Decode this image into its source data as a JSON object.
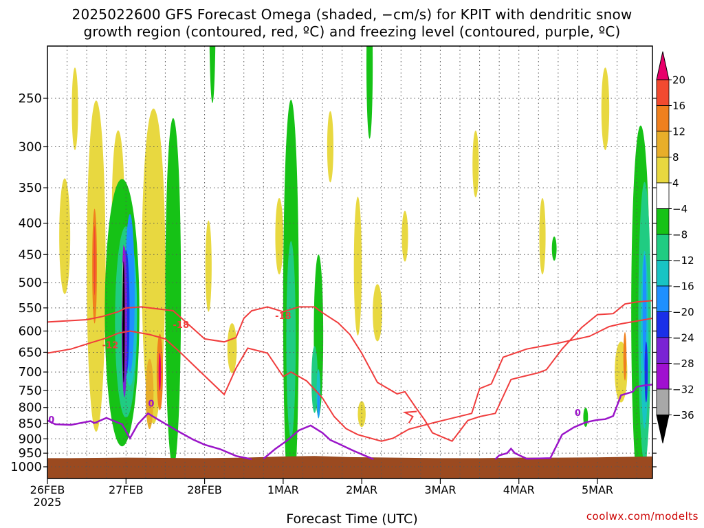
{
  "chart_data": {
    "type": "heatmap",
    "title_line1": "2025022600 GFS Forecast Omega (shaded, −cm/s) for KPIT with dendritic snow",
    "title_line2": "growth region (contoured, red, ºC) and freezing level (contoured, purple, ºC)",
    "xlabel": "Forecast Time (UTC)",
    "credit": "coolwx.com/modelts",
    "x_ticks": [
      {
        "day": 0,
        "label": "26FEB",
        "sub": "2025"
      },
      {
        "day": 1,
        "label": "27FEB",
        "sub": ""
      },
      {
        "day": 2,
        "label": "28FEB",
        "sub": ""
      },
      {
        "day": 3,
        "label": "1MAR",
        "sub": ""
      },
      {
        "day": 4,
        "label": "2MAR",
        "sub": ""
      },
      {
        "day": 5,
        "label": "3MAR",
        "sub": ""
      },
      {
        "day": 6,
        "label": "4MAR",
        "sub": ""
      },
      {
        "day": 7,
        "label": "5MAR",
        "sub": ""
      }
    ],
    "xlim_days": [
      0,
      7.7
    ],
    "y_ticks": [
      250,
      300,
      350,
      400,
      450,
      500,
      550,
      600,
      650,
      700,
      750,
      800,
      850,
      900,
      950,
      1000
    ],
    "ylim_hpa": [
      200,
      1050
    ],
    "colorbar": {
      "labels": [
        "20",
        "16",
        "12",
        "8",
        "4",
        "−4",
        "−8",
        "−12",
        "−16",
        "−20",
        "−24",
        "−28",
        "−32",
        "−36"
      ],
      "colors": [
        "#e8006a",
        "#f24a30",
        "#f0801e",
        "#e8ae2a",
        "#e8d840",
        "#ffffff",
        "#16c216",
        "#20cc82",
        "#18c4c4",
        "#1e90ff",
        "#1a30e8",
        "#7a24d4",
        "#a010d0",
        "#a8a8a8",
        "#000000"
      ]
    },
    "ground_color": "#9b4a20",
    "ground_surface": [
      [
        0,
        968
      ],
      [
        0.3,
        968
      ],
      [
        1,
        966
      ],
      [
        2,
        968
      ],
      [
        2.5,
        966
      ],
      [
        3,
        962
      ],
      [
        3.4,
        960
      ],
      [
        3.8,
        964
      ],
      [
        4.4,
        966
      ],
      [
        5,
        968
      ],
      [
        5.5,
        968
      ],
      [
        6,
        966
      ],
      [
        6.5,
        966
      ],
      [
        7,
        965
      ],
      [
        7.7,
        962
      ]
    ],
    "contours_red": [
      {
        "label": "-18",
        "label_at": [
          1.7,
          588
        ],
        "points": [
          [
            0,
            580
          ],
          [
            0.2,
            578
          ],
          [
            0.5,
            575
          ],
          [
            0.7,
            568
          ],
          [
            0.9,
            558
          ],
          [
            1.0,
            550
          ],
          [
            1.2,
            548
          ],
          [
            1.4,
            552
          ],
          [
            1.6,
            556
          ],
          [
            1.8,
            586
          ],
          [
            2.0,
            618
          ],
          [
            2.25,
            625
          ],
          [
            2.4,
            615
          ],
          [
            2.5,
            572
          ],
          [
            2.6,
            556
          ],
          [
            2.8,
            548
          ],
          [
            3.0,
            558
          ],
          [
            3.2,
            548
          ],
          [
            3.4,
            548
          ],
          [
            3.5,
            560
          ],
          [
            3.7,
            582
          ],
          [
            3.85,
            608
          ],
          [
            4.0,
            652
          ],
          [
            4.2,
            728
          ],
          [
            4.45,
            760
          ],
          [
            4.55,
            754
          ],
          [
            4.7,
            804
          ],
          [
            4.8,
            838
          ],
          [
            4.9,
            880
          ],
          [
            5.15,
            908
          ],
          [
            5.35,
            840
          ],
          [
            5.5,
            828
          ],
          [
            5.7,
            818
          ],
          [
            5.9,
            720
          ],
          [
            6.05,
            712
          ],
          [
            6.25,
            702
          ],
          [
            6.35,
            694
          ],
          [
            6.55,
            642
          ],
          [
            6.8,
            592
          ],
          [
            7.0,
            564
          ],
          [
            7.2,
            562
          ],
          [
            7.35,
            542
          ],
          [
            7.5,
            538
          ],
          [
            7.7,
            535
          ]
        ]
      },
      {
        "label": "-12",
        "label_at": [
          0.8,
          634
        ],
        "points": [
          [
            0,
            652
          ],
          [
            0.3,
            642
          ],
          [
            0.5,
            630
          ],
          [
            0.75,
            616
          ],
          [
            0.9,
            605
          ],
          [
            1.05,
            600
          ],
          [
            1.3,
            608
          ],
          [
            1.5,
            618
          ],
          [
            1.7,
            652
          ],
          [
            1.95,
            700
          ],
          [
            2.25,
            762
          ],
          [
            2.4,
            690
          ],
          [
            2.55,
            640
          ],
          [
            2.8,
            652
          ],
          [
            3.0,
            712
          ],
          [
            3.1,
            700
          ],
          [
            3.3,
            724
          ],
          [
            3.5,
            772
          ],
          [
            3.65,
            828
          ],
          [
            3.8,
            866
          ],
          [
            3.95,
            886
          ],
          [
            4.25,
            908
          ],
          [
            4.4,
            898
          ],
          [
            4.6,
            868
          ],
          [
            4.9,
            848
          ],
          [
            5.1,
            836
          ],
          [
            5.4,
            818
          ],
          [
            5.5,
            745
          ],
          [
            5.65,
            732
          ],
          [
            5.8,
            662
          ],
          [
            6.1,
            642
          ],
          [
            6.5,
            628
          ],
          [
            6.9,
            612
          ],
          [
            7.15,
            590
          ],
          [
            7.3,
            584
          ],
          [
            7.5,
            578
          ],
          [
            7.7,
            572
          ]
        ]
      },
      {
        "label": "-18",
        "label_at": [
          3.0,
          568
        ],
        "points": [
          [
            4.6,
            848
          ],
          [
            4.65,
            828
          ],
          [
            4.55,
            815
          ],
          [
            4.7,
            812
          ]
        ]
      }
    ],
    "contours_purple": [
      {
        "label": "0",
        "label_at": [
          0.05,
          840
        ],
        "points": [
          [
            0,
            840
          ],
          [
            0.1,
            852
          ],
          [
            0.3,
            854
          ],
          [
            0.55,
            842
          ],
          [
            0.6,
            848
          ],
          [
            0.75,
            832
          ],
          [
            0.95,
            852
          ],
          [
            1.05,
            898
          ],
          [
            1.15,
            852
          ],
          [
            1.28,
            818
          ],
          [
            1.4,
            836
          ],
          [
            1.65,
            873
          ],
          [
            1.85,
            902
          ],
          [
            2.0,
            920
          ],
          [
            2.2,
            936
          ],
          [
            2.4,
            960
          ],
          [
            2.6,
            972
          ]
        ]
      },
      {
        "label": "0",
        "label_at": [
          1.32,
          790
        ],
        "points": [
          [
            2.75,
            970
          ],
          [
            2.9,
            935
          ],
          [
            3.05,
            906
          ],
          [
            3.2,
            872
          ],
          [
            3.35,
            856
          ],
          [
            3.5,
            880
          ],
          [
            3.6,
            904
          ],
          [
            3.7,
            916
          ],
          [
            3.9,
            942
          ],
          [
            4.05,
            960
          ],
          [
            4.15,
            972
          ]
        ]
      },
      {
        "label": "0",
        "label_at": [
          6.75,
          818
        ],
        "points": [
          [
            5.7,
            972
          ],
          [
            5.75,
            958
          ],
          [
            5.85,
            950
          ],
          [
            5.9,
            934
          ],
          [
            5.95,
            950
          ],
          [
            6.1,
            970
          ],
          [
            6.4,
            968
          ],
          [
            6.55,
            886
          ],
          [
            6.7,
            862
          ],
          [
            6.85,
            846
          ],
          [
            7.0,
            838
          ],
          [
            7.1,
            836
          ],
          [
            7.2,
            826
          ],
          [
            7.3,
            764
          ],
          [
            7.45,
            754
          ],
          [
            7.5,
            740
          ],
          [
            7.6,
            736
          ],
          [
            7.7,
            734
          ]
        ]
      }
    ],
    "omega_blobs": [
      {
        "value": 6,
        "cx": 0.22,
        "cy": 420,
        "rx": 0.07,
        "ry": 90
      },
      {
        "value": 6,
        "cx": 0.35,
        "cy": 260,
        "rx": 0.04,
        "ry": 40
      },
      {
        "value": 6,
        "cx": 0.62,
        "cy": 470,
        "rx": 0.12,
        "ry": 260
      },
      {
        "value": 6,
        "cx": 1.35,
        "cy": 470,
        "rx": 0.15,
        "ry": 250
      },
      {
        "value": 6,
        "cx": 0.9,
        "cy": 380,
        "rx": 0.08,
        "ry": 110
      },
      {
        "value": 6,
        "cx": 2.05,
        "cy": 470,
        "rx": 0.04,
        "ry": 80
      },
      {
        "value": 6,
        "cx": 2.35,
        "cy": 640,
        "rx": 0.06,
        "ry": 60
      },
      {
        "value": 6,
        "cx": 2.95,
        "cy": 420,
        "rx": 0.05,
        "ry": 60
      },
      {
        "value": 6,
        "cx": 3.95,
        "cy": 470,
        "rx": 0.05,
        "ry": 120
      },
      {
        "value": 6,
        "cx": 4.2,
        "cy": 560,
        "rx": 0.06,
        "ry": 60
      },
      {
        "value": 6,
        "cx": 4.0,
        "cy": 820,
        "rx": 0.05,
        "ry": 40
      },
      {
        "value": 6,
        "cx": 3.6,
        "cy": 300,
        "rx": 0.04,
        "ry": 40
      },
      {
        "value": 6,
        "cx": 4.55,
        "cy": 420,
        "rx": 0.04,
        "ry": 40
      },
      {
        "value": 6,
        "cx": 5.45,
        "cy": 320,
        "rx": 0.04,
        "ry": 40
      },
      {
        "value": 6,
        "cx": 7.1,
        "cy": 260,
        "rx": 0.05,
        "ry": 40
      },
      {
        "value": 6,
        "cx": 7.3,
        "cy": 700,
        "rx": 0.08,
        "ry": 80
      },
      {
        "value": 6,
        "cx": 6.3,
        "cy": 420,
        "rx": 0.04,
        "ry": 60
      },
      {
        "value": -6,
        "cx": 3.1,
        "cy": 550,
        "rx": 0.1,
        "ry": 360
      },
      {
        "value": -6,
        "cx": 0.95,
        "cy": 560,
        "rx": 0.22,
        "ry": 260
      },
      {
        "value": -6,
        "cx": 1.6,
        "cy": 520,
        "rx": 0.1,
        "ry": 300
      },
      {
        "value": -6,
        "cx": 3.45,
        "cy": 610,
        "rx": 0.06,
        "ry": 180
      },
      {
        "value": -6,
        "cx": 2.1,
        "cy": 180,
        "rx": 0.04,
        "ry": 60
      },
      {
        "value": -6,
        "cx": 4.1,
        "cy": 220,
        "rx": 0.04,
        "ry": 60
      },
      {
        "value": -6,
        "cx": 7.55,
        "cy": 560,
        "rx": 0.12,
        "ry": 340
      },
      {
        "value": -6,
        "cx": 6.45,
        "cy": 440,
        "rx": 0.03,
        "ry": 20
      },
      {
        "value": -6,
        "cx": 6.85,
        "cy": 830,
        "rx": 0.03,
        "ry": 30
      },
      {
        "value": -10,
        "cx": 3.1,
        "cy": 620,
        "rx": 0.06,
        "ry": 220
      },
      {
        "value": -10,
        "cx": 3.4,
        "cy": 720,
        "rx": 0.04,
        "ry": 90
      },
      {
        "value": -10,
        "cx": 1.0,
        "cy": 580,
        "rx": 0.14,
        "ry": 200
      },
      {
        "value": -10,
        "cx": 7.6,
        "cy": 580,
        "rx": 0.08,
        "ry": 280
      },
      {
        "value": -14,
        "cx": 3.45,
        "cy": 760,
        "rx": 0.025,
        "ry": 70
      },
      {
        "value": -14,
        "cx": 1.05,
        "cy": 560,
        "rx": 0.09,
        "ry": 150
      },
      {
        "value": -14,
        "cx": 7.6,
        "cy": 620,
        "rx": 0.05,
        "ry": 200
      },
      {
        "value": -18,
        "cx": 1.05,
        "cy": 520,
        "rx": 0.06,
        "ry": 150
      },
      {
        "value": -18,
        "cx": 3.45,
        "cy": 790,
        "rx": 0.015,
        "ry": 40
      },
      {
        "value": -18,
        "cx": 7.6,
        "cy": 560,
        "rx": 0.025,
        "ry": 120
      },
      {
        "value": -22,
        "cx": 1.0,
        "cy": 560,
        "rx": 0.045,
        "ry": 130
      },
      {
        "value": -22,
        "cx": 7.62,
        "cy": 700,
        "rx": 0.02,
        "ry": 80
      },
      {
        "value": -26,
        "cx": 0.98,
        "cy": 580,
        "rx": 0.035,
        "ry": 160
      },
      {
        "value": -30,
        "cx": 0.97,
        "cy": 560,
        "rx": 0.022,
        "ry": 140
      },
      {
        "value": -34,
        "cx": 0.96,
        "cy": 520,
        "rx": 0.012,
        "ry": 60
      },
      {
        "value": -40,
        "cx": 0.97,
        "cy": 580,
        "rx": 0.014,
        "ry": 130
      },
      {
        "value": 14,
        "cx": 0.6,
        "cy": 470,
        "rx": 0.03,
        "ry": 100
      },
      {
        "value": 18,
        "cx": 0.6,
        "cy": 460,
        "rx": 0.012,
        "ry": 60
      },
      {
        "value": 14,
        "cx": 1.43,
        "cy": 700,
        "rx": 0.04,
        "ry": 100
      },
      {
        "value": 22,
        "cx": 1.43,
        "cy": 700,
        "rx": 0.015,
        "ry": 50
      },
      {
        "value": 14,
        "cx": 7.35,
        "cy": 660,
        "rx": 0.02,
        "ry": 60
      },
      {
        "value": 10,
        "cx": 1.3,
        "cy": 760,
        "rx": 0.05,
        "ry": 100
      }
    ]
  }
}
